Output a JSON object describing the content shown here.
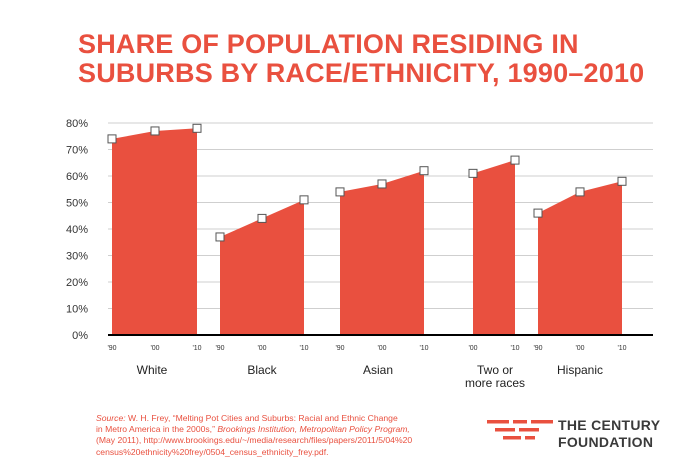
{
  "title": {
    "line1": "SHARE OF POPULATION RESIDING IN",
    "line2": "SUBURBS BY RACE/ETHNICITY, 1990–2010"
  },
  "chart_data": {
    "type": "area",
    "title": "SHARE OF POPULATION RESIDING IN SUBURBS BY RACE/ETHNICITY, 1990–2010",
    "xlabel": "",
    "ylabel": "",
    "ylim": [
      0,
      80
    ],
    "y_ticks": [
      "0%",
      "10%",
      "20%",
      "30%",
      "40%",
      "50%",
      "60%",
      "70%",
      "80%"
    ],
    "grid": true,
    "series": [
      {
        "name": "White",
        "label_lines": [
          "White"
        ],
        "years": [
          "'90",
          "'00",
          "'10"
        ],
        "values": [
          74,
          77,
          78
        ]
      },
      {
        "name": "Black",
        "label_lines": [
          "Black"
        ],
        "years": [
          "'90",
          "'00",
          "'10"
        ],
        "values": [
          37,
          44,
          51
        ]
      },
      {
        "name": "Asian",
        "label_lines": [
          "Asian"
        ],
        "years": [
          "'90",
          "'00",
          "'10"
        ],
        "values": [
          54,
          57,
          62
        ]
      },
      {
        "name": "Two or more races",
        "label_lines": [
          "Two or",
          "more races"
        ],
        "years": [
          "'00",
          "'10"
        ],
        "values": [
          61,
          66
        ]
      },
      {
        "name": "Hispanic",
        "label_lines": [
          "Hispanic"
        ],
        "years": [
          "'90",
          "'00",
          "'10"
        ],
        "values": [
          46,
          54,
          58
        ]
      }
    ],
    "colors": {
      "fill": "#e9503f",
      "grid": "#cfcfcf",
      "axis": "#000000",
      "text": "#333333"
    }
  },
  "source": {
    "label": "Source:",
    "l1_a": " W. H. Frey, “Melting Pot Cities and Suburbs: Racial and Ethnic Change",
    "l2_a": "in Metro America in the 2000s,” ",
    "l2_b": "Brookings Institution, Metropolitan Policy Program,",
    "l3": "(May 2011), http://www.brookings.edu/~/media/research/files/papers/2011/5/04%20",
    "l4": "census%20ethnicity%20frey/0504_census_ethnicity_frey.pdf."
  },
  "logo": {
    "line1": "THE CENTURY",
    "line2": "FOUNDATION"
  }
}
